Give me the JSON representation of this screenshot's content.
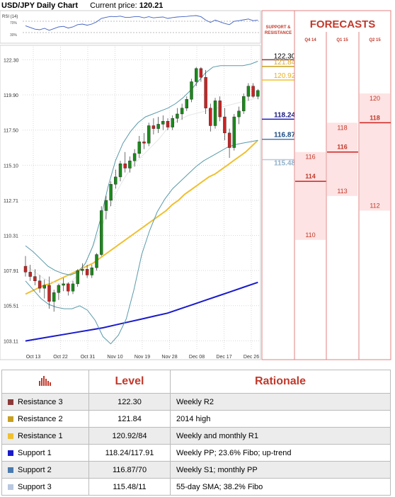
{
  "header": {
    "chart_title": "USD/JPY Daily Chart",
    "price_label": "Current price:",
    "price_value": "120.21"
  },
  "rsi": {
    "label": "RSI (14)",
    "levels": [
      "70%",
      "30%"
    ]
  },
  "panel": {
    "support_resistance_label": [
      "SUPPORT &",
      "RESISTANCE"
    ],
    "forecasts_title": "FORECASTS",
    "columns": [
      "Q4 14",
      "Q1 15",
      "Q2 15"
    ]
  },
  "levels_table": {
    "headers": [
      "Level",
      "Rationale"
    ],
    "rows": [
      {
        "name": "Resistance 3",
        "level": "122.30",
        "rationale": "Weekly R2",
        "color": "#8b3a3a"
      },
      {
        "name": "Resistance 2",
        "level": "121.84",
        "rationale": "2014 high",
        "color": "#c8a020"
      },
      {
        "name": "Resistance 1",
        "level": "120.92/84",
        "rationale": "Weekly and monthly R1",
        "color": "#f0c030"
      },
      {
        "name": "Support 1",
        "level": "118.24/117.91",
        "rationale": "Weekly PP; 23.6% Fibo; up-trend",
        "color": "#1a1acc"
      },
      {
        "name": "Support 2",
        "level": "116.87/70",
        "rationale": "Weekly S1; monthly PP",
        "color": "#4a7ab0"
      },
      {
        "name": "Support 3",
        "level": "115.48/11",
        "rationale": "55-day SMA; 38.2% Fibo",
        "color": "#b8c8e0"
      }
    ]
  },
  "chart_data": {
    "type": "candlestick",
    "ytick_labels": [
      "122.30",
      "119.90",
      "117.50",
      "115.10",
      "112.71",
      "110.31",
      "107.91",
      "105.51",
      "103.11"
    ],
    "y_ticks": [
      122.3,
      119.9,
      117.5,
      115.1,
      112.71,
      110.31,
      107.91,
      105.51,
      103.11
    ],
    "ylim": [
      102.5,
      122.9
    ],
    "xtick_labels": [
      "Oct 13",
      "Oct 22",
      "Oct 31",
      "Nov 10",
      "Nov 19",
      "Nov 28",
      "Dec 08",
      "Dec 17",
      "Dec 26"
    ],
    "grid": true,
    "candles": [
      [
        108.2,
        108.9,
        107.5,
        107.8
      ],
      [
        107.8,
        108.3,
        107.2,
        107.5
      ],
      [
        107.5,
        108.0,
        106.9,
        107.2
      ],
      [
        107.2,
        107.6,
        106.4,
        106.7
      ],
      [
        106.7,
        107.3,
        106.0,
        106.9
      ],
      [
        106.9,
        107.5,
        105.3,
        105.8
      ],
      [
        105.8,
        106.6,
        105.1,
        106.4
      ],
      [
        106.4,
        107.0,
        105.9,
        106.9
      ],
      [
        106.9,
        107.4,
        106.5,
        107.0
      ],
      [
        107.0,
        107.1,
        106.2,
        106.5
      ],
      [
        106.5,
        107.2,
        106.3,
        107.0
      ],
      [
        107.0,
        108.0,
        106.8,
        107.9
      ],
      [
        107.9,
        108.4,
        107.6,
        108.0
      ],
      [
        108.0,
        108.3,
        107.4,
        107.6
      ],
      [
        107.6,
        108.3,
        107.4,
        108.1
      ],
      [
        108.1,
        109.1,
        107.9,
        109.0
      ],
      [
        109.0,
        112.3,
        108.9,
        112.0
      ],
      [
        112.0,
        113.0,
        111.4,
        112.7
      ],
      [
        112.7,
        114.0,
        112.3,
        113.8
      ],
      [
        113.8,
        114.8,
        113.5,
        114.3
      ],
      [
        114.3,
        115.4,
        114.0,
        115.2
      ],
      [
        115.2,
        116.0,
        114.6,
        114.9
      ],
      [
        114.9,
        115.7,
        114.6,
        115.4
      ],
      [
        115.4,
        116.2,
        115.0,
        115.9
      ],
      [
        115.9,
        117.1,
        115.6,
        116.7
      ],
      [
        116.7,
        117.3,
        116.2,
        116.6
      ],
      [
        116.6,
        118.0,
        116.4,
        117.8
      ],
      [
        117.8,
        118.3,
        117.2,
        117.6
      ],
      [
        117.6,
        118.4,
        117.3,
        117.9
      ],
      [
        117.9,
        118.5,
        117.5,
        118.1
      ],
      [
        118.1,
        118.3,
        117.5,
        117.7
      ],
      [
        117.7,
        118.5,
        117.5,
        118.3
      ],
      [
        118.3,
        119.0,
        118.0,
        118.6
      ],
      [
        118.6,
        119.3,
        118.2,
        119.0
      ],
      [
        119.0,
        119.8,
        118.8,
        119.6
      ],
      [
        119.6,
        121.0,
        119.4,
        120.8
      ],
      [
        120.8,
        121.8,
        120.5,
        121.7
      ],
      [
        121.7,
        121.8,
        120.8,
        121.1
      ],
      [
        121.1,
        121.6,
        118.6,
        119.0
      ],
      [
        119.0,
        119.3,
        117.4,
        117.8
      ],
      [
        117.8,
        119.7,
        117.6,
        119.5
      ],
      [
        119.5,
        119.8,
        118.1,
        118.4
      ],
      [
        118.4,
        119.0,
        116.8,
        117.3
      ],
      [
        117.3,
        117.6,
        115.6,
        116.3
      ],
      [
        116.3,
        118.6,
        116.1,
        118.4
      ],
      [
        118.4,
        119.1,
        117.9,
        118.8
      ],
      [
        118.8,
        120.0,
        118.6,
        119.8
      ],
      [
        119.8,
        120.7,
        119.5,
        120.5
      ],
      [
        120.5,
        120.7,
        119.7,
        119.8
      ],
      [
        119.8,
        120.3,
        119.6,
        120.2
      ]
    ],
    "series": [
      {
        "name": "",
        "color": "#f0c030",
        "values": [
          106.3,
          106.5,
          106.7,
          106.9,
          107.0,
          107.2,
          107.4,
          107.6,
          107.8,
          108.0,
          108.2,
          108.4,
          108.7,
          109.0,
          109.3,
          109.6,
          109.9,
          110.2,
          110.5,
          110.8,
          111.1,
          111.4,
          111.7,
          112.0,
          112.4,
          112.7,
          113.1,
          113.4,
          113.7,
          114.0,
          114.3,
          114.5,
          114.8,
          115.1,
          115.4,
          115.7,
          116.0,
          116.4,
          116.8
        ]
      },
      {
        "name": "",
        "color": "#1a1acc",
        "values": [
          103.1,
          103.25,
          103.4,
          103.55,
          103.7,
          103.85,
          104.0,
          104.2,
          104.4,
          104.6,
          104.8,
          105.0,
          105.3,
          105.6,
          105.9,
          106.2,
          106.5,
          106.8,
          107.1
        ]
      },
      {
        "name": "",
        "color": "#e6e6e6",
        "values": [
          108.3,
          108.0,
          107.7,
          107.4,
          107.2,
          107.1,
          107.0,
          107.0,
          107.2,
          107.6,
          108.2,
          109.0,
          109.9,
          110.8,
          111.8,
          112.7,
          113.5,
          114.2,
          114.8,
          115.3,
          115.7,
          116.1,
          116.5,
          116.9,
          117.4,
          117.8,
          118.1,
          118.3,
          118.5,
          118.6,
          118.7,
          118.8,
          118.9,
          119.0,
          119.1,
          119.2,
          119.3,
          119.4,
          119.5,
          119.6,
          119.7
        ]
      },
      {
        "name": "",
        "color": "#5a9aaa",
        "values": [
          109.6,
          109.2,
          108.7,
          108.2,
          107.9,
          107.7,
          107.6,
          107.8,
          108.4,
          109.6,
          111.4,
          113.6,
          115.4,
          116.6,
          117.4,
          118.0,
          118.4,
          118.6,
          118.8,
          119.0,
          119.3,
          119.7,
          120.2,
          120.8,
          121.4,
          121.8,
          121.9,
          121.9,
          121.9,
          121.9,
          122.0,
          122.2
        ]
      },
      {
        "name": "",
        "color": "#5a9aaa",
        "values": [
          107.2,
          106.6,
          106.0,
          105.6,
          105.4,
          105.3,
          105.3,
          105.5,
          105.2,
          104.5,
          103.4,
          102.9,
          103.5,
          104.6,
          106.6,
          109.0,
          110.6,
          111.9,
          112.8,
          113.5,
          114.0,
          114.5,
          115.0,
          115.4,
          115.7,
          116.0,
          116.3,
          116.5,
          116.6,
          116.7,
          116.8
        ]
      }
    ],
    "rsi_values": [
      54,
      48,
      42,
      40,
      45,
      38,
      44,
      50,
      52,
      46,
      50,
      58,
      60,
      56,
      60,
      68,
      80,
      84,
      87,
      86,
      88,
      84,
      84,
      86,
      86,
      82,
      86,
      82,
      84,
      85,
      80,
      83,
      85,
      86,
      87,
      89,
      90,
      86,
      74,
      66,
      74,
      68,
      62,
      58,
      70,
      72,
      75,
      78,
      72,
      74
    ],
    "sr_levels": [
      {
        "value": 122.3,
        "label": "122.30",
        "color": "#8b3a3a",
        "label_color": "#000000"
      },
      {
        "value": 121.84,
        "label": "121.84",
        "color": "#c8a020",
        "label_color": "#d9a820"
      },
      {
        "value": 120.92,
        "label": "120.92",
        "color": "#f0c030",
        "label_color": "#e8b020"
      },
      {
        "value": 118.24,
        "label": "118.24",
        "color": "#1a1acc",
        "label_color": "#1a1a80"
      },
      {
        "value": 116.87,
        "label": "116.87",
        "color": "#4a7ab0",
        "label_color": "#1a4a80"
      },
      {
        "value": 115.48,
        "label": "115.48",
        "color": "#b8c8e0",
        "label_color": "#90b0c8"
      }
    ],
    "forecasts": [
      {
        "period": "Q4 14",
        "high": 116,
        "median": 114,
        "low": 110
      },
      {
        "period": "Q1 15",
        "high": 118,
        "median": 116,
        "low": 113
      },
      {
        "period": "Q2 15",
        "high": 120,
        "median": 118,
        "low": 112
      }
    ]
  }
}
